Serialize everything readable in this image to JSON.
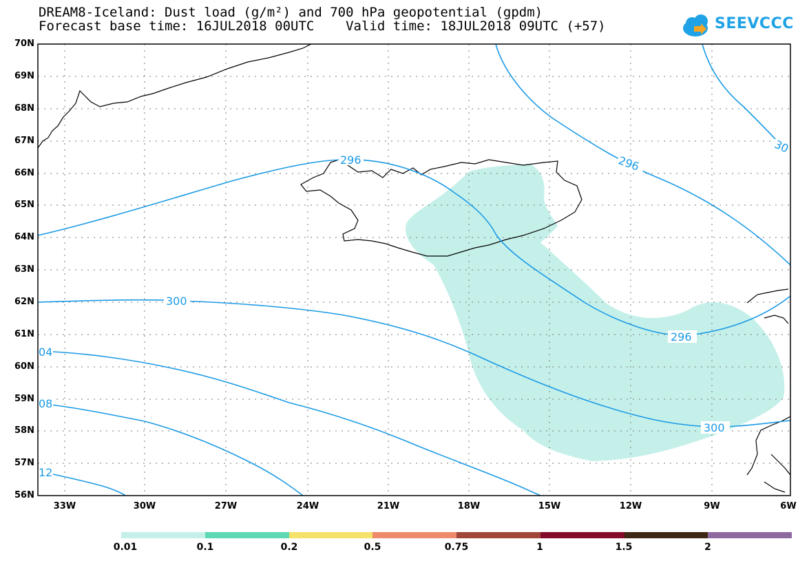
{
  "title": {
    "line1": "DREAM8-Iceland: Dust load (g/m²) and 700 hPa geopotential (gpdm)",
    "line2": "Forecast base time: 16JUL2018 00UTC    Valid time: 18JUL2018 09UTC (+57)"
  },
  "logo": {
    "text": "SEEVCCC",
    "icon": "cloud-arrow-icon"
  },
  "map": {
    "lat_labels": [
      "70N",
      "69N",
      "68N",
      "67N",
      "66N",
      "65N",
      "64N",
      "63N",
      "62N",
      "61N",
      "60N",
      "59N",
      "58N",
      "57N",
      "56N"
    ],
    "lon_labels": [
      "33W",
      "30W",
      "27W",
      "24W",
      "21W",
      "18W",
      "15W",
      "12W",
      "9W",
      "6W"
    ],
    "contour_labels": [
      "296",
      "296",
      "30",
      "300",
      "296",
      "04",
      "08",
      "300",
      "12"
    ],
    "dust_color": "#c5f0ea",
    "contour_color": "#1a9ae6"
  },
  "colorbar": {
    "colors": [
      "#c5f0ea",
      "#5ed9b4",
      "#f5e26a",
      "#ee8b6a",
      "#a0473a",
      "#820b2b",
      "#3c2815",
      "#8e69a0"
    ],
    "labels": [
      "0.01",
      "0.1",
      "0.2",
      "0.5",
      "0.75",
      "1",
      "1.5",
      "2"
    ]
  }
}
